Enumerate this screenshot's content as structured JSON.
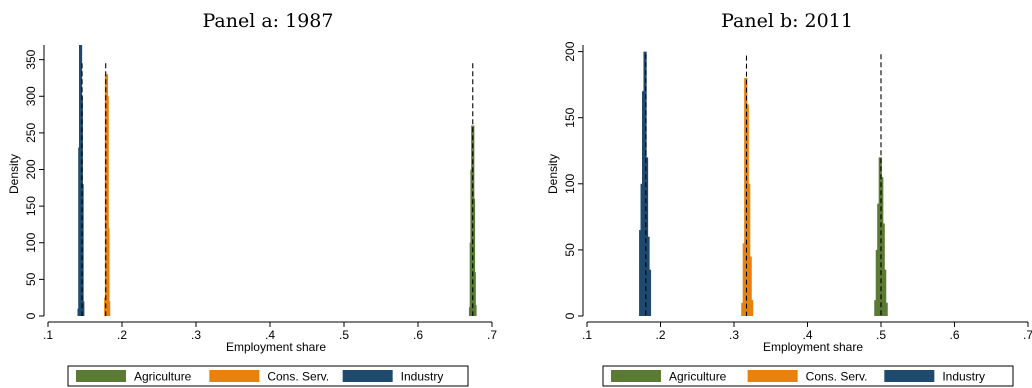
{
  "colors": {
    "agriculture": "#5b7a34",
    "cons_serv": "#e8820d",
    "industry": "#1f4a6e",
    "mean_line": "#000000"
  },
  "chart_data": [
    {
      "type": "bar",
      "subtype": "histogram-density",
      "title": "Panel a: 1987",
      "xlabel": "Employment share",
      "ylabel": "Density",
      "xlim": [
        0.1,
        0.7
      ],
      "ylim": [
        0,
        370
      ],
      "xticks": [
        ".1",
        ".2",
        ".3",
        ".4",
        ".5",
        ".6",
        ".7"
      ],
      "xtick_values": [
        0.1,
        0.2,
        0.3,
        0.4,
        0.5,
        0.6,
        0.7
      ],
      "yticks": [
        "0",
        "50",
        "100",
        "150",
        "200",
        "250",
        "300",
        "350"
      ],
      "ytick_values": [
        0,
        50,
        100,
        150,
        200,
        250,
        300,
        350
      ],
      "grid": false,
      "legend_position": "bottom",
      "series": [
        {
          "name": "Agriculture",
          "color_key": "agriculture",
          "bins": [
            [
              0.671,
              12
            ],
            [
              0.672,
              100
            ],
            [
              0.673,
              200
            ],
            [
              0.674,
              260
            ],
            [
              0.675,
              160
            ],
            [
              0.676,
              60
            ],
            [
              0.677,
              15
            ]
          ],
          "mean": 0.674,
          "mean_density": 345
        },
        {
          "name": "Cons. Serv.",
          "color_key": "cons_serv",
          "bins": [
            [
              0.178,
              25
            ],
            [
              0.179,
              330
            ],
            [
              0.18,
              300
            ],
            [
              0.181,
              120
            ],
            [
              0.182,
              20
            ]
          ],
          "mean": 0.178,
          "mean_density": 345
        },
        {
          "name": "Industry",
          "color_key": "industry",
          "bins": [
            [
              0.142,
              10
            ],
            [
              0.143,
              230
            ],
            [
              0.144,
              370
            ],
            [
              0.145,
              300
            ],
            [
              0.146,
              180
            ],
            [
              0.147,
              20
            ]
          ],
          "mean": 0.146,
          "mean_density": 345
        }
      ]
    },
    {
      "type": "bar",
      "subtype": "histogram-density",
      "title": "Panel b: 2011",
      "xlabel": "Employment share",
      "ylabel": "Density",
      "xlim": [
        0.1,
        0.7
      ],
      "ylim": [
        0,
        205
      ],
      "xticks": [
        ".1",
        ".2",
        ".3",
        ".4",
        ".5",
        ".6",
        ".7"
      ],
      "xtick_values": [
        0.1,
        0.2,
        0.3,
        0.4,
        0.5,
        0.6,
        0.7
      ],
      "yticks": [
        "0",
        "50",
        "100",
        "150",
        "200"
      ],
      "ytick_values": [
        0,
        50,
        100,
        150,
        200
      ],
      "grid": false,
      "legend_position": "bottom",
      "series": [
        {
          "name": "Agriculture",
          "color_key": "agriculture",
          "bins": [
            [
              0.493,
              12
            ],
            [
              0.495,
              50
            ],
            [
              0.497,
              85
            ],
            [
              0.499,
              120
            ],
            [
              0.501,
              105
            ],
            [
              0.503,
              70
            ],
            [
              0.505,
              35
            ],
            [
              0.507,
              10
            ]
          ],
          "mean": 0.5,
          "mean_density": 198
        },
        {
          "name": "Cons. Serv.",
          "color_key": "cons_serv",
          "bins": [
            [
              0.312,
              10
            ],
            [
              0.314,
              55
            ],
            [
              0.316,
              180
            ],
            [
              0.318,
              160
            ],
            [
              0.32,
              100
            ],
            [
              0.322,
              45
            ],
            [
              0.324,
              12
            ]
          ],
          "mean": 0.317,
          "mean_density": 197
        },
        {
          "name": "Industry",
          "color_key": "industry",
          "bins": [
            [
              0.173,
              65
            ],
            [
              0.175,
              100
            ],
            [
              0.177,
              170
            ],
            [
              0.179,
              200
            ],
            [
              0.181,
              120
            ],
            [
              0.183,
              60
            ],
            [
              0.185,
              35
            ]
          ],
          "mean": 0.18,
          "mean_density": 198
        }
      ]
    }
  ]
}
